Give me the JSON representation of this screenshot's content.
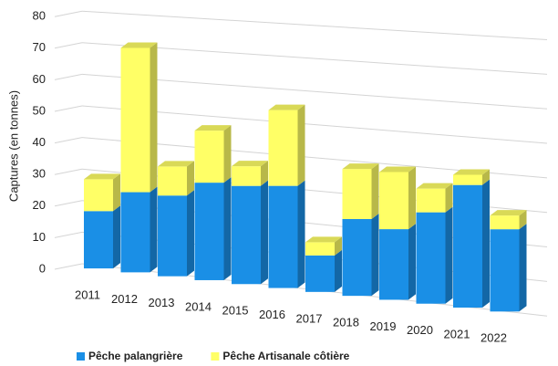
{
  "chart_data": {
    "type": "bar3d_stacked",
    "y_label": "Captures  (en tonnes)",
    "categories": [
      "2011",
      "2012",
      "2013",
      "2014",
      "2015",
      "2016",
      "2017",
      "2018",
      "2019",
      "2020",
      "2021",
      "2022"
    ],
    "series": [
      {
        "name": "Pêche palangrière",
        "color": "#1a8fe6",
        "values": [
          18,
          25,
          25,
          30,
          30,
          31,
          11,
          23,
          21,
          27,
          36,
          24
        ]
      },
      {
        "name": "Pêche Artisanale côtière",
        "color": "#ffff66",
        "values": [
          10,
          45,
          9,
          16,
          6,
          23,
          4,
          15,
          17,
          7,
          3,
          4
        ]
      }
    ],
    "ylim": [
      0,
      80
    ],
    "yticks": [
      0,
      10,
      20,
      30,
      40,
      50,
      60,
      70,
      80
    ],
    "grid": true
  }
}
